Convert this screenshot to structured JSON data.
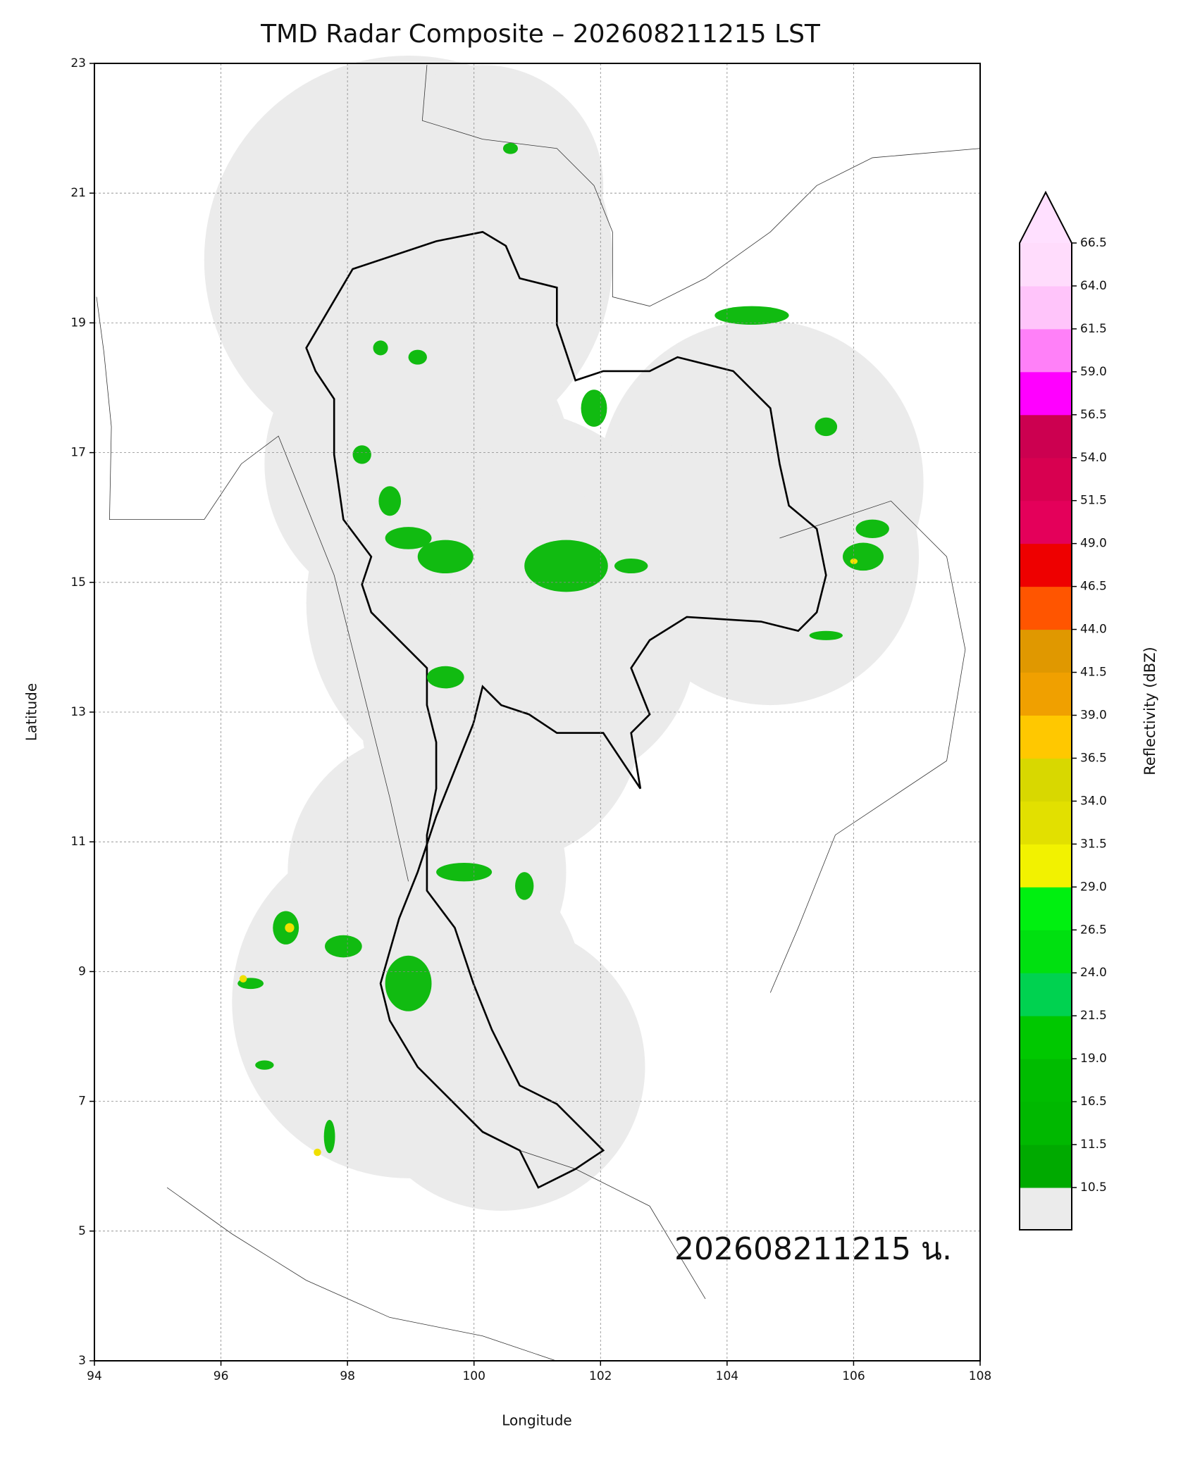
{
  "title": "TMD Radar Composite – 202608211215 LST",
  "map": {
    "xlabel": "Longitude",
    "ylabel": "Latitude",
    "xlim": [
      94,
      108
    ],
    "ylim": [
      3,
      23
    ],
    "xticks": [
      94,
      96,
      98,
      100,
      102,
      104,
      106,
      108
    ],
    "yticks": [
      3,
      5,
      7,
      9,
      11,
      13,
      15,
      17,
      19,
      21,
      23
    ],
    "grid": true,
    "annotation": "202608211215 น."
  },
  "colorbar": {
    "label": "Reflectivity (dBZ)",
    "ticks": [
      10.5,
      11.5,
      16.5,
      {
        "value": 19,
        "label": "19.0"
      },
      21.5,
      {
        "value": 24,
        "label": "24.0"
      },
      26.5,
      {
        "value": 29,
        "label": "29.0"
      },
      31.5,
      {
        "value": 34,
        "label": "34.0"
      },
      36.5,
      {
        "value": 39,
        "label": "39.0"
      },
      41.5,
      {
        "value": 44,
        "label": "44.0"
      },
      46.5,
      {
        "value": 49,
        "label": "49.0"
      },
      51.5,
      {
        "value": 54,
        "label": "54.0"
      },
      56.5,
      {
        "value": 59,
        "label": "59.0"
      },
      61.5,
      {
        "value": 64,
        "label": "64.0"
      },
      66.5
    ],
    "colors": [
      "#00aa00",
      "#00b800",
      "#00bc00",
      "#00c800",
      "#00d250",
      "#00e010",
      "#00f010",
      "#f2f200",
      "#e2e000",
      "#d8d800",
      "#ffc800",
      "#f0a000",
      "#e09800",
      "#ff5500",
      "#ee0000",
      "#e4005a",
      "#d80050",
      "#cc0050",
      "#ff00ff",
      "#ff80f8",
      "#ffc4fa",
      "#ffdcfc"
    ],
    "under_color": "#ebebeb",
    "over_color": "#ffe0ff"
  }
}
